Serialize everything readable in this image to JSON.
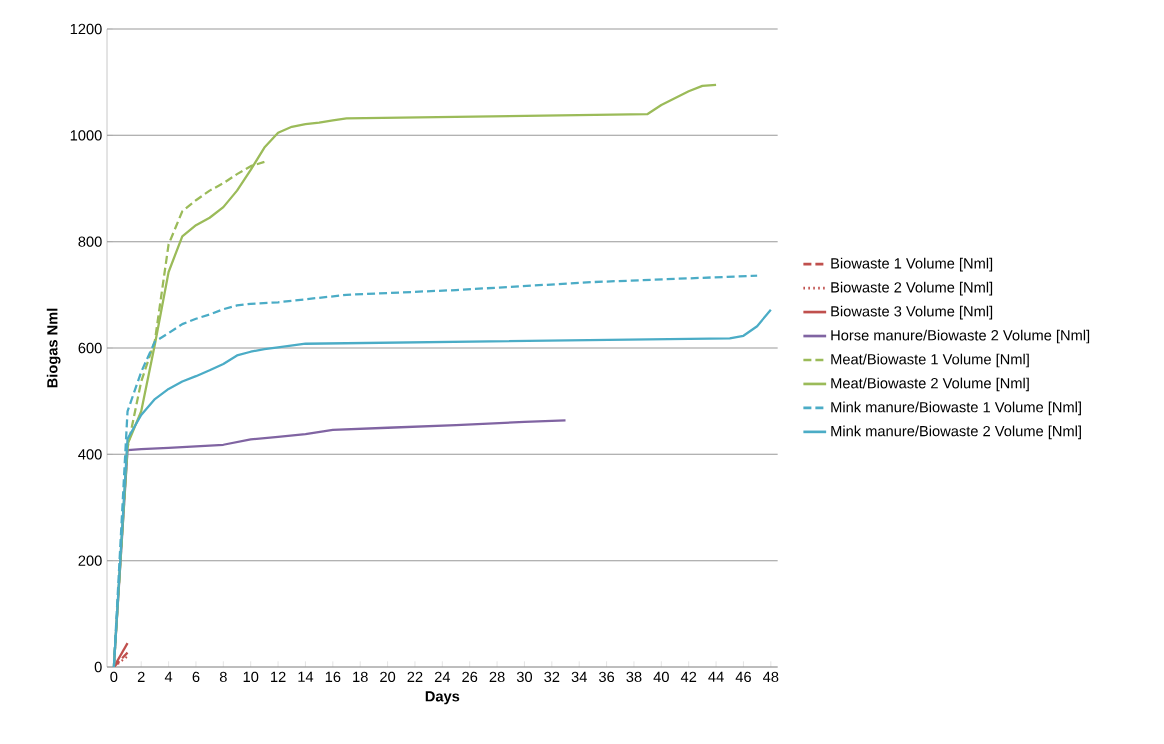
{
  "chart_data": {
    "type": "line",
    "xlabel": "Days",
    "ylabel": "Biogas Nml",
    "xlim": [
      -0.5,
      48.5
    ],
    "ylim": [
      0,
      1200
    ],
    "xticks": [
      0,
      2,
      4,
      6,
      8,
      10,
      12,
      14,
      16,
      18,
      20,
      22,
      24,
      26,
      28,
      30,
      32,
      34,
      36,
      38,
      40,
      42,
      44,
      46,
      48
    ],
    "yticks": [
      0,
      200,
      400,
      600,
      800,
      1000,
      1200
    ],
    "grid": "y",
    "legend": "right",
    "marker": "none",
    "series": [
      {
        "name": "Biowaste 1 Volume [Nml]",
        "color": "#c0504d",
        "line_style": "dashed",
        "x": [
          0,
          1
        ],
        "values": [
          0,
          27
        ]
      },
      {
        "name": "Biowaste 2 Volume [Nml]",
        "color": "#c0504d",
        "line_style": "dotted",
        "x": [
          0,
          1
        ],
        "values": [
          0,
          20
        ]
      },
      {
        "name": "Biowaste 3 Volume [Nml]",
        "color": "#c0504d",
        "line_style": "solid",
        "x": [
          0,
          1
        ],
        "values": [
          0,
          45
        ]
      },
      {
        "name": "Horse manure/Biowaste 2 Volume [Nml]",
        "color": "#8064a2",
        "line_style": "solid",
        "x": [
          0,
          1,
          2,
          4,
          6,
          8,
          10,
          12,
          14,
          16,
          20,
          25,
          30,
          33
        ],
        "values": [
          0,
          408,
          410,
          412,
          415,
          418,
          428,
          433,
          438,
          446,
          450,
          455,
          461,
          464
        ]
      },
      {
        "name": "Meat/Biowaste 1 Volume [Nml]",
        "color": "#9bbb59",
        "line_style": "dashed",
        "x": [
          0,
          1,
          2,
          3,
          4,
          5,
          6,
          7,
          8,
          9,
          10,
          11
        ],
        "values": [
          0,
          412,
          537,
          614,
          795,
          857,
          878,
          896,
          910,
          927,
          942,
          950
        ]
      },
      {
        "name": "Meat/Biowaste 2 Volume [Nml]",
        "color": "#9bbb59",
        "line_style": "solid",
        "x": [
          0,
          1,
          2,
          3,
          4,
          5,
          6,
          7,
          8,
          9,
          10,
          11,
          12,
          13,
          14,
          15,
          16,
          17,
          39,
          40,
          41,
          42,
          43,
          44
        ],
        "values": [
          0,
          419,
          481,
          607,
          743,
          810,
          831,
          845,
          865,
          896,
          935,
          977,
          1005,
          1016,
          1021,
          1024,
          1028,
          1032,
          1040,
          1057,
          1070,
          1083,
          1093,
          1095
        ]
      },
      {
        "name": "Mink manure/Biowaste 1 Volume [Nml]",
        "color": "#4bacc6",
        "line_style": "dashed",
        "x": [
          0,
          1,
          2,
          3,
          4,
          5,
          6,
          7,
          8,
          9,
          10,
          12,
          17,
          25,
          35,
          47
        ],
        "values": [
          0,
          481,
          555,
          612,
          628,
          645,
          655,
          663,
          673,
          680,
          683,
          686,
          700,
          709,
          724,
          736
        ]
      },
      {
        "name": "Mink manure/Biowaste 2 Volume [Nml]",
        "color": "#4bacc6",
        "line_style": "solid",
        "x": [
          0,
          1,
          2,
          3,
          4,
          5,
          6,
          7,
          8,
          9,
          10,
          11,
          12,
          14,
          45,
          46,
          47,
          48
        ],
        "values": [
          0,
          429,
          474,
          504,
          523,
          537,
          547,
          558,
          570,
          586,
          593,
          598,
          601,
          608,
          618,
          623,
          641,
          672
        ]
      }
    ]
  }
}
